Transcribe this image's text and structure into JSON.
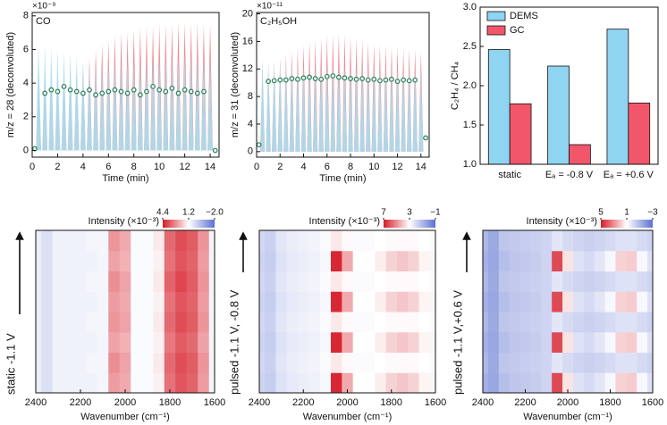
{
  "chart_data": [
    {
      "type": "spike",
      "label": "CO",
      "scale": "×10⁻⁹",
      "xlabel": "Time (min)",
      "ylabel": "m/z = 28 (deconvoluted)",
      "xlim": [
        0,
        14.7
      ],
      "xticks": [
        0,
        2,
        4,
        6,
        8,
        10,
        12,
        14
      ],
      "ylim": [
        -0.4,
        8.2
      ],
      "yticks": [
        0,
        2,
        4,
        6,
        8
      ],
      "x": [
        0.5,
        1,
        1.5,
        2,
        2.5,
        3,
        3.5,
        4,
        4.5,
        5,
        5.5,
        6,
        6.5,
        7,
        7.5,
        8,
        8.5,
        9,
        9.5,
        10,
        10.5,
        11,
        11.5,
        12,
        12.5,
        13,
        13.5,
        14
      ],
      "series": [
        {
          "color": "#f07a80",
          "values": [
            4.5,
            4.5,
            4.5,
            4.5,
            4.6,
            4.7,
            4.8,
            5.0,
            5.5,
            6.0,
            6.3,
            6.5,
            6.8,
            7.0,
            7.0,
            7.2,
            7.3,
            7.3,
            7.4,
            7.5,
            7.5,
            7.5,
            7.6,
            7.6,
            7.6,
            7.6,
            7.5,
            7.5
          ]
        },
        {
          "color": "#abdff0",
          "values": [
            6.3,
            6.2,
            6.1,
            6.0,
            5.9,
            5.8,
            5.6,
            5.4,
            4.9,
            5.0,
            5.1,
            5.2,
            5.3,
            5.3,
            5.4,
            5.4,
            5.5,
            5.5,
            5.5,
            5.6,
            5.6,
            5.6,
            5.6,
            5.7,
            5.7,
            5.7,
            5.7,
            5.6
          ]
        }
      ],
      "markers": {
        "color": "#2e7d5b",
        "x": [
          0.2,
          1,
          1.5,
          2,
          2.5,
          3,
          3.5,
          4,
          4.5,
          5,
          5.5,
          6,
          6.5,
          7,
          7.5,
          8,
          8.5,
          9,
          9.5,
          10,
          10.5,
          11,
          11.5,
          12,
          12.5,
          13,
          13.5,
          14.4
        ],
        "values": [
          0.1,
          3.4,
          3.6,
          3.5,
          3.8,
          3.6,
          3.5,
          3.4,
          3.6,
          3.3,
          3.4,
          3.5,
          3.6,
          3.5,
          3.4,
          3.6,
          3.3,
          3.5,
          3.8,
          3.6,
          3.5,
          3.7,
          3.4,
          3.6,
          3.5,
          3.4,
          3.5,
          0.0
        ]
      }
    },
    {
      "type": "spike",
      "label": "C₂H₅OH",
      "scale": "×10⁻¹¹",
      "xlabel": "Time (min)",
      "ylabel": "m/z = 31 (deconvoluted)",
      "xlim": [
        0,
        14.7
      ],
      "xticks": [
        0,
        2,
        4,
        6,
        8,
        10,
        12,
        14
      ],
      "ylim": [
        -0.8,
        20.2
      ],
      "yticks": [
        0,
        4,
        8,
        12,
        16,
        20
      ],
      "x": [
        0.5,
        1,
        1.5,
        2,
        2.5,
        3,
        3.5,
        4,
        4.5,
        5,
        5.5,
        6,
        6.5,
        7,
        7.5,
        8,
        8.5,
        9,
        9.5,
        10,
        10.5,
        11,
        11.5,
        12,
        12.5,
        13,
        13.5,
        14
      ],
      "series": [
        {
          "color": "#f07a80",
          "values": [
            12.0,
            12.5,
            13.0,
            13.5,
            14.0,
            14.5,
            15.0,
            15.5,
            16.0,
            16.2,
            16.5,
            16.8,
            17.0,
            17.2,
            17.0,
            16.8,
            16.5,
            16.2,
            16.0,
            15.8,
            15.5,
            15.5,
            15.3,
            15.2,
            15.0,
            15.0,
            14.8,
            14.5
          ]
        },
        {
          "color": "#abdff0",
          "values": [
            13.5,
            13.0,
            13.0,
            12.8,
            12.8,
            12.6,
            12.6,
            12.5,
            12.5,
            12.6,
            12.6,
            12.7,
            12.7,
            12.6,
            12.6,
            12.5,
            12.5,
            12.4,
            12.4,
            12.3,
            12.3,
            12.2,
            12.2,
            12.2,
            12.1,
            12.1,
            12.0,
            12.0
          ]
        }
      ],
      "markers": {
        "color": "#2e7d5b",
        "x": [
          0.2,
          1,
          1.5,
          2,
          2.5,
          3,
          3.5,
          4,
          4.5,
          5,
          5.5,
          6,
          6.5,
          7,
          7.5,
          8,
          8.5,
          9,
          9.5,
          10,
          10.5,
          11,
          11.5,
          12,
          12.5,
          13,
          13.5,
          14.4
        ],
        "values": [
          1.0,
          10.2,
          10.3,
          10.4,
          10.4,
          10.6,
          10.5,
          10.7,
          10.8,
          10.6,
          10.5,
          10.9,
          11.0,
          10.8,
          10.7,
          10.6,
          10.5,
          10.6,
          10.4,
          10.5,
          10.3,
          10.4,
          10.5,
          10.2,
          10.4,
          10.3,
          10.4,
          2.0
        ]
      }
    },
    {
      "type": "bar",
      "ylabel": "C₂H₄ / CH₄",
      "categories": [
        "static",
        "Eₐ = -0.8 V",
        "Eₐ = +0.6 V"
      ],
      "ylim": [
        1.0,
        3.0
      ],
      "yticks": [
        {
          "value": 1.0,
          "label": "1.0"
        },
        1.5,
        {
          "value": 2.0,
          "label": "2.0"
        },
        2.5,
        {
          "value": 3.0,
          "label": "3.0"
        }
      ],
      "legend": "upper left",
      "series": [
        {
          "name": "DEMS",
          "color": "#8fd4f0",
          "values": [
            2.46,
            2.25,
            2.72
          ]
        },
        {
          "name": "GC",
          "color": "#f2566a",
          "values": [
            1.77,
            1.25,
            1.78
          ]
        }
      ]
    },
    {
      "type": "heatmap",
      "ylabel": "static -1.1 V",
      "xlabel": "Wavenumber (cm⁻¹)",
      "colorbar_label": "Intensity (×10⁻³)",
      "clim": [
        -2.0,
        4.4
      ],
      "cticks": [
        4.4,
        1.2,
        {
          "value": -2.0,
          "label": "−2.0"
        }
      ],
      "xlim": [
        2400,
        1600
      ],
      "xticks": [
        2400,
        2200,
        2000,
        1800,
        1600
      ],
      "x": [
        2400,
        2350,
        2300,
        2250,
        2200,
        2150,
        2100,
        2050,
        2000,
        1950,
        1900,
        1850,
        1800,
        1750,
        1700,
        1650,
        1600
      ],
      "z": [
        [
          0.8,
          0.5,
          0.9,
          0.9,
          0.9,
          0.9,
          1.0,
          2.6,
          2.4,
          1.1,
          1.1,
          1.4,
          3.2,
          3.6,
          3.4,
          2.6,
          1.0
        ],
        [
          0.8,
          0.5,
          0.9,
          0.9,
          0.9,
          1.0,
          1.0,
          2.8,
          2.5,
          1.1,
          1.1,
          1.5,
          3.3,
          3.7,
          3.5,
          2.7,
          1.0
        ],
        [
          0.8,
          0.5,
          0.9,
          0.9,
          0.9,
          0.9,
          1.0,
          2.5,
          2.3,
          1.1,
          1.1,
          1.4,
          3.1,
          3.5,
          3.3,
          2.5,
          1.0
        ],
        [
          0.8,
          0.5,
          0.9,
          0.9,
          0.9,
          1.0,
          1.0,
          2.7,
          2.5,
          1.1,
          1.1,
          1.5,
          3.3,
          3.7,
          3.5,
          2.7,
          1.0
        ],
        [
          0.8,
          0.5,
          0.9,
          0.9,
          0.9,
          0.9,
          1.0,
          2.6,
          2.4,
          1.1,
          1.1,
          1.4,
          3.2,
          3.6,
          3.4,
          2.6,
          1.0
        ],
        [
          0.8,
          0.5,
          0.9,
          0.9,
          0.9,
          1.0,
          1.0,
          2.8,
          2.5,
          1.1,
          1.1,
          1.5,
          3.4,
          3.8,
          3.5,
          2.7,
          1.0
        ],
        [
          0.8,
          0.5,
          0.9,
          0.9,
          0.9,
          0.9,
          1.0,
          2.5,
          2.3,
          1.1,
          1.1,
          1.4,
          3.2,
          3.6,
          3.4,
          2.6,
          1.0
        ],
        [
          0.8,
          0.5,
          0.9,
          0.9,
          0.9,
          1.0,
          1.0,
          2.7,
          2.4,
          1.1,
          1.1,
          1.5,
          3.3,
          3.7,
          3.5,
          2.7,
          1.0
        ]
      ]
    },
    {
      "type": "heatmap",
      "ylabel": "pulsed -1.1 V, -0.8 V",
      "xlabel": "Wavenumber (cm⁻¹)",
      "colorbar_label": "Intensity (×10⁻³)",
      "clim": [
        -1,
        7
      ],
      "cticks": [
        7,
        3,
        {
          "value": -1,
          "label": "−1"
        }
      ],
      "xlim": [
        2400,
        1600
      ],
      "xticks": [
        2400,
        2200,
        2000,
        1800,
        1600
      ],
      "x": [
        2400,
        2350,
        2300,
        2250,
        2200,
        2150,
        2100,
        2050,
        2000,
        1950,
        1900,
        1850,
        1800,
        1750,
        1700,
        1650,
        1600
      ],
      "z": [
        [
          1.8,
          1.6,
          2.2,
          2.4,
          2.5,
          2.6,
          2.8,
          6.8,
          4.5,
          3.0,
          3.0,
          3.3,
          3.8,
          4.0,
          3.8,
          3.2,
          2.8
        ],
        [
          1.9,
          1.7,
          2.3,
          2.5,
          2.6,
          2.7,
          2.9,
          3.4,
          3.1,
          2.9,
          2.9,
          3.0,
          3.1,
          3.1,
          3.1,
          3.0,
          2.9
        ],
        [
          1.8,
          1.6,
          2.2,
          2.4,
          2.5,
          2.6,
          2.8,
          6.8,
          4.5,
          3.0,
          3.0,
          3.3,
          3.8,
          4.0,
          3.8,
          3.2,
          2.8
        ],
        [
          1.9,
          1.7,
          2.3,
          2.5,
          2.6,
          2.7,
          2.9,
          3.4,
          3.1,
          2.9,
          2.9,
          3.0,
          3.1,
          3.1,
          3.1,
          3.0,
          2.9
        ],
        [
          1.8,
          1.6,
          2.2,
          2.4,
          2.5,
          2.6,
          2.8,
          6.8,
          4.5,
          3.0,
          3.0,
          3.3,
          3.8,
          4.0,
          3.8,
          3.2,
          2.8
        ],
        [
          1.9,
          1.7,
          2.3,
          2.5,
          2.6,
          2.7,
          2.9,
          3.4,
          3.1,
          2.9,
          2.9,
          3.0,
          3.1,
          3.1,
          3.1,
          3.0,
          2.9
        ],
        [
          1.8,
          1.6,
          2.2,
          2.4,
          2.5,
          2.6,
          2.8,
          6.8,
          4.5,
          3.0,
          3.0,
          3.3,
          3.8,
          4.0,
          3.8,
          3.2,
          2.8
        ],
        [
          1.9,
          1.7,
          2.3,
          2.5,
          2.6,
          2.7,
          2.9,
          3.4,
          3.1,
          2.9,
          2.9,
          3.0,
          3.1,
          3.1,
          3.1,
          3.0,
          2.9
        ]
      ]
    },
    {
      "type": "heatmap",
      "ylabel": "pulsed -1.1 V,+0.6 V",
      "xlabel": "Wavenumber (cm⁻¹)",
      "colorbar_label": "Intensity (×10⁻³)",
      "clim": [
        -3,
        5
      ],
      "cticks": [
        5,
        1,
        {
          "value": -3,
          "label": "−3"
        }
      ],
      "xlim": [
        2400,
        1600
      ],
      "xticks": [
        2400,
        2200,
        2000,
        1800,
        1600
      ],
      "x": [
        2400,
        2350,
        2300,
        2250,
        2200,
        2150,
        2100,
        2050,
        2000,
        1950,
        1900,
        1850,
        1800,
        1750,
        1700,
        1650,
        1600
      ],
      "z": [
        [
          -1.2,
          -1.5,
          -0.8,
          -0.6,
          -0.5,
          -0.4,
          -0.2,
          4.2,
          1.5,
          0.2,
          0.0,
          0.3,
          0.8,
          1.8,
          1.9,
          0.8,
          0.2
        ],
        [
          -1.0,
          -1.4,
          -0.6,
          -0.5,
          -0.4,
          -0.3,
          -0.2,
          0.3,
          0.0,
          -0.2,
          -0.3,
          -0.2,
          0.0,
          0.2,
          0.2,
          0.0,
          -0.2
        ],
        [
          -1.2,
          -1.5,
          -0.8,
          -0.6,
          -0.5,
          -0.4,
          -0.2,
          4.2,
          1.5,
          0.2,
          0.0,
          0.3,
          0.8,
          1.8,
          1.9,
          0.8,
          0.2
        ],
        [
          -1.0,
          -1.4,
          -0.6,
          -0.5,
          -0.4,
          -0.3,
          -0.2,
          0.3,
          0.0,
          -0.2,
          -0.3,
          -0.2,
          0.0,
          0.2,
          0.2,
          0.0,
          -0.2
        ],
        [
          -1.2,
          -1.5,
          -0.8,
          -0.6,
          -0.5,
          -0.4,
          -0.2,
          4.2,
          1.5,
          0.2,
          0.0,
          0.3,
          0.8,
          1.8,
          1.9,
          0.8,
          0.2
        ],
        [
          -1.0,
          -1.4,
          -0.6,
          -0.5,
          -0.4,
          -0.3,
          -0.2,
          0.3,
          0.0,
          -0.2,
          -0.3,
          -0.2,
          0.0,
          0.2,
          0.2,
          0.0,
          -0.2
        ],
        [
          -1.2,
          -1.5,
          -0.8,
          -0.6,
          -0.5,
          -0.4,
          -0.2,
          4.2,
          1.5,
          0.2,
          0.0,
          0.3,
          0.8,
          1.8,
          1.9,
          0.8,
          0.2
        ],
        [
          -1.0,
          -1.4,
          -0.6,
          -0.5,
          -0.4,
          -0.3,
          -0.2,
          0.3,
          0.0,
          -0.2,
          -0.3,
          -0.2,
          0.0,
          0.2,
          0.2,
          0.0,
          -0.2
        ]
      ]
    }
  ]
}
